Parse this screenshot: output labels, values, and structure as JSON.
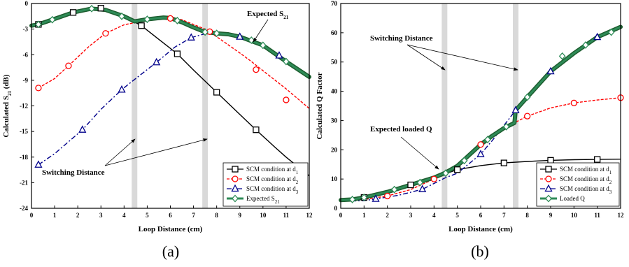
{
  "chart_data": [
    {
      "type": "line",
      "panel_label": "(a)",
      "xlabel": "Loop Distance (cm)",
      "ylabel": "Calculated S",
      "ylabel_sub": "21",
      "ylabel_suffix": " (dB)",
      "xlim": [
        0,
        12
      ],
      "ylim": [
        -24,
        0
      ],
      "xticks": [
        0,
        1,
        2,
        3,
        4,
        5,
        6,
        7,
        8,
        9,
        10,
        11,
        12
      ],
      "yticks": [
        -24,
        -21,
        -18,
        -15,
        -12,
        -9,
        -6,
        -3,
        0
      ],
      "switching_bands": [
        4.45,
        7.5
      ],
      "legend_position": "bottom-right",
      "annotations": {
        "expected": {
          "text": "Expected S",
          "sub": "21"
        },
        "switching": {
          "text": "Switching Distance"
        }
      },
      "series": [
        {
          "name": "SCM condition at d",
          "name_sub": "1",
          "color": "#000000",
          "dash": "solid",
          "marker": "square",
          "x": [
            0,
            0.3,
            1,
            1.8,
            2.5,
            3,
            3.5,
            4,
            4.75,
            5.5,
            6.3,
            7,
            8,
            9,
            9.7,
            10.5,
            11,
            12
          ],
          "y": [
            -2.6,
            -2.45,
            -1.8,
            -1.05,
            -0.65,
            -0.55,
            -0.9,
            -1.5,
            -2.6,
            -4.2,
            -5.9,
            -7.8,
            -10.4,
            -13.0,
            -14.8,
            -16.8,
            -18.0,
            -20.2
          ],
          "marker_x": [
            0.3,
            1.8,
            3,
            4.75,
            6.3,
            8,
            9.7
          ],
          "marker_y": [
            -2.45,
            -1.05,
            -0.55,
            -2.6,
            -5.9,
            -10.4,
            -14.8
          ]
        },
        {
          "name": "SCM condition at d",
          "name_sub": "2",
          "color": "#ff0000",
          "dash": "dashed",
          "marker": "circle",
          "x": [
            0.3,
            1,
            1.6,
            2.5,
            3.2,
            4,
            5,
            6,
            6.5,
            7.5,
            8,
            9,
            9.5,
            10.2,
            11,
            12
          ],
          "y": [
            -9.9,
            -8.8,
            -7.3,
            -5.0,
            -3.5,
            -2.5,
            -1.95,
            -1.75,
            -1.9,
            -3.0,
            -3.9,
            -5.8,
            -6.8,
            -8.3,
            -10.0,
            -12.3
          ],
          "marker_x": [
            0.3,
            1.6,
            3.2,
            6,
            7.7,
            9.7,
            11
          ],
          "marker_y": [
            -9.9,
            -7.3,
            -3.5,
            -1.75,
            -3.3,
            -7.75,
            -11.3
          ]
        },
        {
          "name": "SCM condition at d",
          "name_sub": "3",
          "color": "#00008b",
          "dash": "dashdot",
          "marker": "triangle",
          "x": [
            0.3,
            1,
            2.2,
            3,
            3.9,
            4.5,
            5.4,
            6.2,
            6.9,
            7.5,
            8.2,
            9,
            9.7,
            10.2,
            11,
            12
          ],
          "y": [
            -18.9,
            -17.6,
            -14.8,
            -12.4,
            -10.1,
            -8.8,
            -6.9,
            -5.1,
            -4.0,
            -3.55,
            -3.5,
            -3.9,
            -4.6,
            -5.3,
            -6.9,
            -8.5
          ],
          "marker_x": [
            0.3,
            2.2,
            3.9,
            5.4,
            6.9,
            9,
            10.7
          ],
          "marker_y": [
            -18.9,
            -14.8,
            -10.1,
            -6.9,
            -4.0,
            -3.9,
            -6.1
          ]
        },
        {
          "name": "Expected S",
          "name_sub": "21",
          "color": "#2e8b57",
          "dash": "solid",
          "marker": "diamond",
          "thick": true,
          "x": [
            0,
            0.3,
            1,
            1.8,
            2.6,
            3.2,
            4,
            4.45,
            5,
            5.7,
            6,
            6.5,
            7,
            7.5,
            8,
            8.5,
            9,
            10,
            11,
            12
          ],
          "y": [
            -2.6,
            -2.45,
            -1.8,
            -1.05,
            -0.6,
            -0.75,
            -1.5,
            -2.1,
            -1.85,
            -1.65,
            -1.7,
            -2.2,
            -2.8,
            -3.35,
            -3.5,
            -3.6,
            -3.9,
            -4.9,
            -6.8,
            -8.6
          ],
          "marker_x": [
            0.3,
            0.9,
            2.6,
            3.9,
            5,
            6.3,
            7.5,
            8,
            9.5,
            10,
            11
          ],
          "marker_y": [
            -2.45,
            -1.9,
            -0.6,
            -1.5,
            -1.85,
            -2.0,
            -3.35,
            -3.5,
            -4.3,
            -4.9,
            -6.8
          ]
        }
      ]
    },
    {
      "type": "line",
      "panel_label": "(b)",
      "xlabel": "Loop Distance (cm)",
      "ylabel": "Calculated Q Factor",
      "xlim": [
        0,
        12
      ],
      "ylim": [
        0,
        70
      ],
      "xticks": [
        0,
        1,
        2,
        3,
        4,
        5,
        6,
        7,
        8,
        9,
        10,
        11,
        12
      ],
      "yticks": [
        0,
        10,
        20,
        30,
        40,
        50,
        60,
        70
      ],
      "switching_bands": [
        4.45,
        7.5
      ],
      "legend_position": "bottom-right",
      "annotations": {
        "switching": {
          "text": "Switching Distance"
        },
        "expected": {
          "text": "Expected loaded Q"
        }
      },
      "series": [
        {
          "name": "SCM condition at d",
          "name_sub": "1",
          "color": "#000000",
          "dash": "solid",
          "marker": "square",
          "x": [
            0,
            0.5,
            1,
            1.5,
            2,
            3,
            4,
            5,
            6,
            7,
            8,
            9,
            10,
            11,
            12
          ],
          "y": [
            2.8,
            3.0,
            3.7,
            4.8,
            5.6,
            8.0,
            10.5,
            13.2,
            14.6,
            15.5,
            16.0,
            16.4,
            16.6,
            16.7,
            16.8
          ],
          "marker_x": [
            1,
            3,
            5,
            7,
            9,
            11
          ],
          "marker_y": [
            3.7,
            8.0,
            13.2,
            15.5,
            16.4,
            16.7
          ]
        },
        {
          "name": "SCM condition at d",
          "name_sub": "2",
          "color": "#ff0000",
          "dash": "dashed",
          "marker": "circle",
          "x": [
            0,
            1,
            2,
            3,
            4,
            5,
            6,
            7,
            8,
            9,
            10,
            11,
            12
          ],
          "y": [
            2.6,
            3.0,
            4.2,
            6.4,
            10.0,
            14.5,
            21.8,
            27.4,
            31.5,
            34.3,
            36.0,
            37.0,
            37.8
          ],
          "marker_x": [
            2,
            4,
            6,
            8,
            10,
            12
          ],
          "marker_y": [
            4.2,
            10.0,
            21.8,
            31.5,
            36.0,
            37.8
          ]
        },
        {
          "name": "SCM condition at d",
          "name_sub": "3",
          "color": "#00008b",
          "dash": "dashdot",
          "marker": "triangle",
          "x": [
            0,
            1,
            1.5,
            2.5,
            3.5,
            4.5,
            5,
            6,
            6.5,
            7.5,
            8,
            9,
            10,
            11,
            12
          ],
          "y": [
            2.4,
            2.6,
            3.2,
            4.5,
            6.5,
            10.5,
            12.0,
            18.5,
            23.2,
            33.5,
            38.0,
            46.8,
            53.0,
            58.5,
            62.0
          ],
          "marker_x": [
            1.5,
            3.5,
            6,
            7.5,
            9,
            11
          ],
          "marker_y": [
            3.2,
            6.5,
            18.5,
            33.5,
            46.8,
            58.5
          ]
        },
        {
          "name": "Loaded Q",
          "color": "#2e8b57",
          "dash": "solid",
          "marker": "diamond",
          "thick": true,
          "x": [
            0,
            0.5,
            1,
            2,
            3,
            4,
            4.45,
            5,
            6,
            6.5,
            7,
            7.45,
            7.5,
            8,
            9,
            10,
            11,
            12
          ],
          "y": [
            2.8,
            3.0,
            3.7,
            5.6,
            8.0,
            10.5,
            12.0,
            14.5,
            21.8,
            24.8,
            27.4,
            29.2,
            33.5,
            38.0,
            46.8,
            53.0,
            58.5,
            62.0
          ],
          "marker_x": [
            0.5,
            1,
            2.3,
            3.4,
            4.5,
            5.3,
            6.3,
            7.1,
            8,
            9.5,
            10.5,
            11.6
          ],
          "marker_y": [
            3.0,
            3.7,
            6.4,
            8.8,
            12.0,
            16.3,
            23.5,
            27.9,
            38.0,
            52.0,
            55.8,
            60.2
          ]
        }
      ]
    }
  ]
}
